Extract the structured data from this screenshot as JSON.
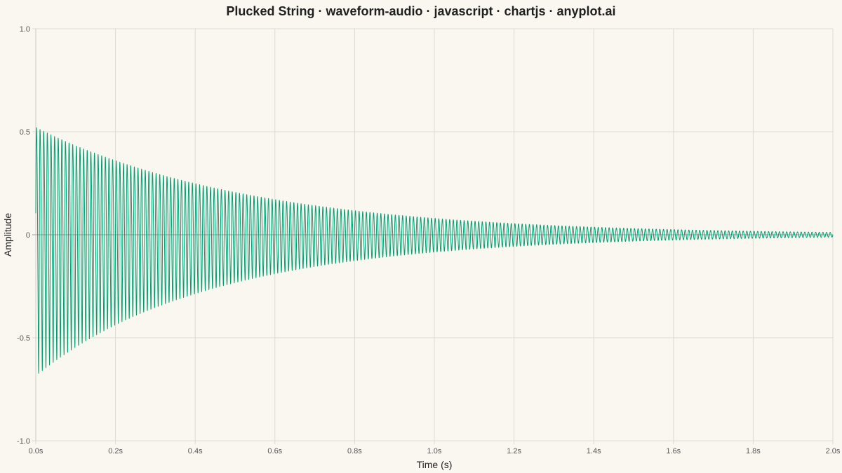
{
  "title": "Plucked String · waveform-audio · javascript · chartjs · anyplot.ai",
  "colors": {
    "background": "#FAF7F1",
    "line": "#009E73",
    "grid": "#DDDAD3",
    "zero_line": "#9A9A9A"
  },
  "chart_data": {
    "type": "line",
    "title": "Plucked String · waveform-audio · javascript · chartjs · anyplot.ai",
    "xlabel": "Time (s)",
    "ylabel": "Amplitude",
    "xlim": [
      0,
      2.0
    ],
    "ylim": [
      -1.0,
      1.0
    ],
    "x_ticks": [
      0,
      0.2,
      0.4,
      0.6,
      0.8,
      1.0,
      1.2,
      1.4,
      1.6,
      1.8,
      2.0
    ],
    "x_tick_labels": [
      "0.0s",
      "0.2s",
      "0.4s",
      "0.6s",
      "0.8s",
      "1.0s",
      "1.2s",
      "1.4s",
      "1.6s",
      "1.8s",
      "2.0s"
    ],
    "y_ticks": [
      -1.0,
      -0.5,
      0,
      0.5,
      1.0
    ],
    "y_tick_labels": [
      "-1.0",
      "-0.5",
      "0",
      "0.5",
      "1.0"
    ],
    "grid": true,
    "legend": "none",
    "series": [
      {
        "waveform": "damped oscillation",
        "initial_amplitude": 0.74,
        "decay_rate_per_s": 1.95,
        "frequency_hz": 110,
        "color": "#009E73"
      }
    ]
  }
}
